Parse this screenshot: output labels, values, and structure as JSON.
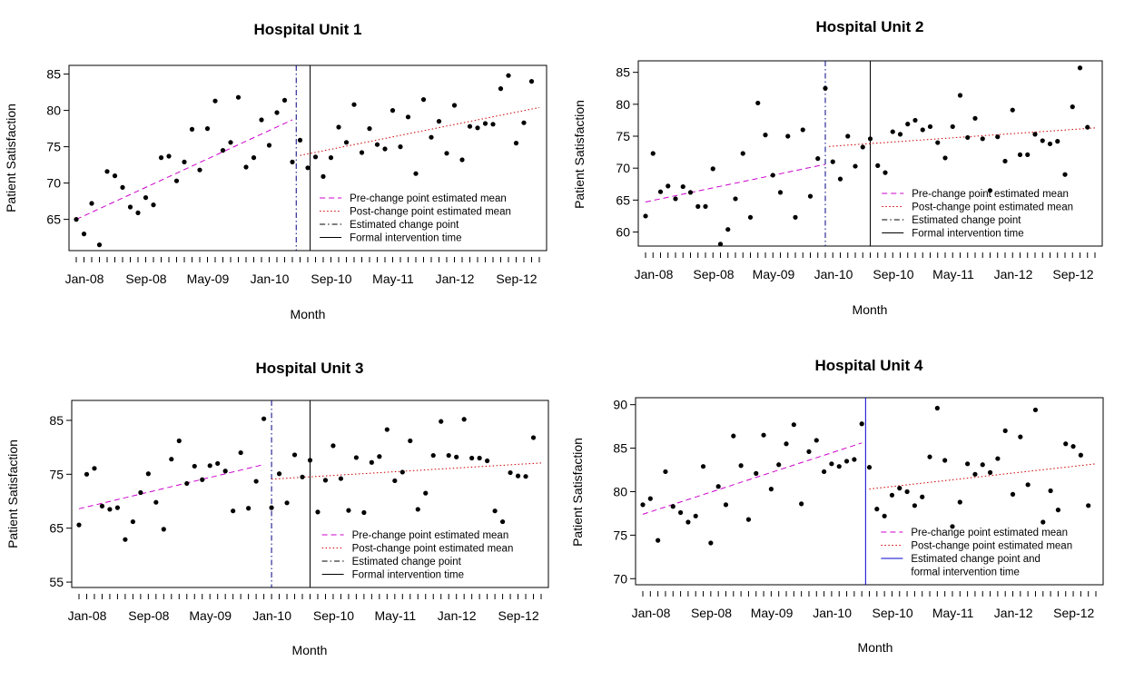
{
  "chart_data": [
    {
      "type": "scatter",
      "title": "Hospital Unit 1",
      "xlabel": "Month",
      "ylabel": "Patient Satisfaction",
      "x_tick_labels": [
        "Jan-08",
        "Sep-08",
        "May-09",
        "Jan-10",
        "Sep-10",
        "May-11",
        "Jan-12",
        "Sep-12"
      ],
      "x_tick_label_months": [
        1,
        9,
        17,
        25,
        33,
        41,
        49,
        57
      ],
      "x_minor_ticks": [
        1,
        61
      ],
      "xlim": [
        1,
        61
      ],
      "y_ticks": [
        65,
        70,
        75,
        80,
        85
      ],
      "ylim": [
        60.7,
        86.2
      ],
      "points": [
        65.0,
        63.0,
        67.2,
        61.5,
        71.6,
        71.0,
        69.4,
        66.7,
        65.9,
        68.0,
        67.0,
        73.5,
        73.7,
        70.3,
        72.9,
        77.4,
        71.8,
        77.5,
        81.3,
        74.5,
        75.6,
        81.8,
        72.2,
        73.5,
        78.7,
        75.2,
        79.7,
        81.4,
        72.9,
        75.9,
        72.1,
        73.6,
        70.9,
        73.5,
        77.7,
        75.6,
        80.8,
        74.2,
        77.5,
        75.3,
        74.7,
        80.0,
        75.0,
        79.1,
        71.3,
        81.5,
        76.3,
        78.5,
        74.1,
        80.7,
        73.2,
        77.8,
        77.6,
        78.2,
        78.1,
        83.0,
        84.8,
        75.5,
        78.3,
        84.0
      ],
      "lines": [
        {
          "name": "Pre-change point estimated mean",
          "color": "#cc00cc",
          "dash": "dashed",
          "x": [
            1,
            29
          ],
          "y": [
            65.0,
            78.7
          ]
        },
        {
          "name": "Post-change point estimated mean",
          "color": "#cc0000",
          "dash": "dotted",
          "x": [
            30,
            61
          ],
          "y": [
            73.8,
            80.4
          ]
        }
      ],
      "vlines": [
        {
          "name": "Estimated change point",
          "color": "#000080",
          "dash": "dotdash",
          "x": 29.5
        },
        {
          "name": "Formal intervention time",
          "color": "#000000",
          "dash": "solid",
          "x": 31.3
        }
      ],
      "legend": [
        "Pre-change point estimated mean",
        "Post-change point estimated mean",
        "Estimated change point",
        "Formal intervention time"
      ],
      "legend_position": "bottom-right"
    },
    {
      "type": "scatter",
      "title": "Hospital Unit 2",
      "xlabel": "Month",
      "ylabel": "Patient Satisfaction",
      "x_tick_labels": [
        "Jan-08",
        "Sep-08",
        "May-09",
        "Jan-10",
        "Sep-10",
        "May-11",
        "Jan-12",
        "Sep-12"
      ],
      "x_tick_label_months": [
        1,
        9,
        17,
        25,
        33,
        41,
        49,
        57
      ],
      "x_minor_ticks": [
        1,
        61
      ],
      "xlim": [
        1,
        61
      ],
      "y_ticks": [
        60,
        65,
        70,
        75,
        80,
        85
      ],
      "ylim": [
        57.8,
        86.8
      ],
      "points": [
        62.5,
        72.3,
        66.3,
        67.2,
        65.2,
        67.1,
        66.2,
        64.0,
        64.0,
        69.9,
        58.1,
        60.4,
        65.2,
        72.3,
        62.3,
        80.2,
        75.2,
        68.9,
        66.2,
        75.0,
        62.3,
        76.0,
        65.6,
        71.5,
        82.5,
        71.0,
        68.3,
        75.0,
        70.3,
        73.3,
        74.6,
        70.4,
        69.3,
        75.7,
        75.3,
        76.9,
        77.5,
        76.0,
        76.5,
        74.0,
        71.6,
        76.5,
        81.4,
        74.8,
        77.8,
        74.6,
        66.5,
        74.9,
        71.1,
        79.1,
        72.1,
        72.1,
        75.3,
        74.3,
        73.8,
        74.2,
        69.0,
        79.6,
        85.7,
        76.4
      ],
      "lines": [
        {
          "name": "Pre-change point estimated mean",
          "color": "#cc00cc",
          "dash": "dashed",
          "x": [
            1,
            25
          ],
          "y": [
            64.7,
            70.6
          ]
        },
        {
          "name": "Post-change point estimated mean",
          "color": "#cc0000",
          "dash": "dotted",
          "x": [
            25.5,
            61
          ],
          "y": [
            73.4,
            76.3
          ]
        }
      ],
      "vlines": [
        {
          "name": "Estimated change point",
          "color": "#000080",
          "dash": "dotdash",
          "x": 25.0
        },
        {
          "name": "Formal intervention time",
          "color": "#000000",
          "dash": "solid",
          "x": 31.0
        }
      ],
      "legend": [
        "Pre-change point estimated mean",
        "Post-change point estimated mean",
        "Estimated change point",
        "Formal intervention time"
      ],
      "legend_position": "bottom-right"
    },
    {
      "type": "scatter",
      "title": "Hospital Unit 3",
      "xlabel": "Month",
      "ylabel": "Patient Satisfaction",
      "x_tick_labels": [
        "Jan-08",
        "Sep-08",
        "May-09",
        "Jan-10",
        "Sep-10",
        "May-11",
        "Jan-12",
        "Sep-12"
      ],
      "x_tick_label_months": [
        1,
        9,
        17,
        25,
        33,
        41,
        49,
        57
      ],
      "x_minor_ticks": [
        1,
        61
      ],
      "xlim": [
        1,
        61
      ],
      "y_ticks": [
        55,
        65,
        75,
        85
      ],
      "ylim": [
        54.0,
        88.7
      ],
      "points": [
        65.6,
        75.0,
        76.1,
        69.1,
        68.5,
        68.8,
        62.9,
        66.2,
        71.6,
        75.1,
        69.8,
        64.8,
        77.8,
        81.2,
        73.3,
        76.5,
        74.0,
        76.6,
        77.0,
        75.6,
        68.2,
        79.0,
        68.7,
        73.7,
        85.3,
        68.8,
        75.1,
        69.7,
        78.6,
        74.5,
        77.6,
        68.0,
        73.9,
        80.3,
        74.2,
        68.3,
        78.1,
        67.9,
        77.2,
        78.3,
        83.3,
        73.8,
        75.4,
        81.2,
        68.5,
        71.5,
        78.5,
        84.8,
        78.5,
        78.2,
        85.2,
        78.0,
        78.0,
        77.5,
        68.2,
        66.2,
        75.3,
        74.7,
        74.6,
        81.8
      ],
      "lines": [
        {
          "name": "Pre-change point estimated mean",
          "color": "#cc00cc",
          "dash": "dashed",
          "x": [
            1,
            25
          ],
          "y": [
            68.6,
            76.8
          ]
        },
        {
          "name": "Post-change point estimated mean",
          "color": "#cc0000",
          "dash": "dotted",
          "x": [
            26,
            61
          ],
          "y": [
            74.1,
            77.1
          ]
        }
      ],
      "vlines": [
        {
          "name": "Estimated change point",
          "color": "#000080",
          "dash": "dotdash",
          "x": 26.0
        },
        {
          "name": "Formal intervention time",
          "color": "#000000",
          "dash": "solid",
          "x": 31.0
        }
      ],
      "legend": [
        "Pre-change point estimated mean",
        "Post-change point estimated mean",
        "Estimated change point",
        "Formal intervention time"
      ],
      "legend_position": "bottom-right"
    },
    {
      "type": "scatter",
      "title": "Hospital Unit 4",
      "xlabel": "Month",
      "ylabel": "Patient Satisfaction",
      "x_tick_labels": [
        "Jan-08",
        "Sep-08",
        "May-09",
        "Jan-10",
        "Sep-10",
        "May-11",
        "Jan-12",
        "Sep-12"
      ],
      "x_tick_label_months": [
        1,
        9,
        17,
        25,
        33,
        41,
        49,
        57
      ],
      "x_minor_ticks": [
        1,
        61
      ],
      "xlim": [
        1,
        61
      ],
      "y_ticks": [
        70,
        75,
        80,
        85,
        90
      ],
      "ylim": [
        69.3,
        90.8
      ],
      "points": [
        78.5,
        79.2,
        74.4,
        82.3,
        78.3,
        77.6,
        76.5,
        77.2,
        82.9,
        74.1,
        80.6,
        78.5,
        86.4,
        83.0,
        76.8,
        82.1,
        86.5,
        80.3,
        83.1,
        85.5,
        87.7,
        78.6,
        84.6,
        85.9,
        82.3,
        83.2,
        82.9,
        83.5,
        83.7,
        87.8,
        82.8,
        78.0,
        77.2,
        79.6,
        80.4,
        80.0,
        78.4,
        79.4,
        84.0,
        89.6,
        83.6,
        76.0,
        78.8,
        83.2,
        82.0,
        83.1,
        82.2,
        83.8,
        87.0,
        79.7,
        86.3,
        80.8,
        89.4,
        76.5,
        80.1,
        77.9,
        85.5,
        85.2,
        84.2,
        78.4
      ],
      "lines": [
        {
          "name": "Pre-change point estimated mean",
          "color": "#cc00cc",
          "dash": "dashed",
          "x": [
            1,
            30
          ],
          "y": [
            77.4,
            85.6
          ]
        },
        {
          "name": "Post-change point estimated mean",
          "color": "#cc0000",
          "dash": "dotted",
          "x": [
            31,
            61
          ],
          "y": [
            80.3,
            83.2
          ]
        }
      ],
      "vlines": [
        {
          "name": "Estimated change point and formal intervention time",
          "color": "#0000cc",
          "dash": "solid",
          "x": 30.5
        }
      ],
      "legend": [
        "Pre-change point estimated mean",
        "Post-change point estimated mean",
        "Estimated change point and",
        "formal intervention time"
      ],
      "legend_position": "bottom-right"
    }
  ]
}
